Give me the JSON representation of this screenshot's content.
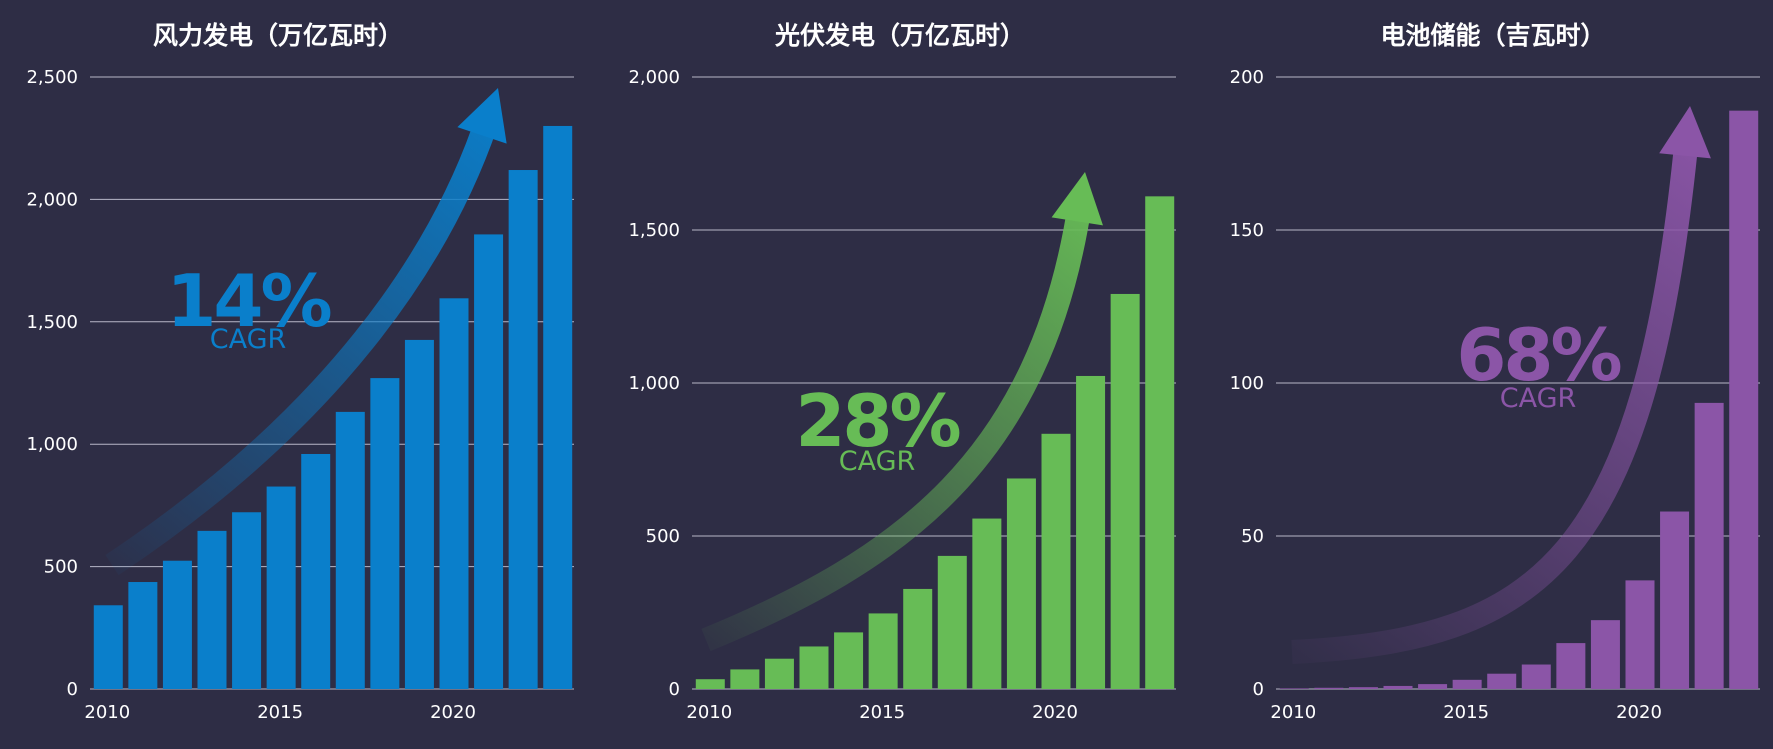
{
  "chart_data": [
    {
      "type": "bar",
      "title": "风力发电（万亿瓦时）",
      "color": "#0a7fcb",
      "x": [
        2010,
        2011,
        2012,
        2013,
        2014,
        2015,
        2016,
        2017,
        2018,
        2019,
        2020,
        2021,
        2022,
        2023
      ],
      "values": [
        342,
        437,
        524,
        646,
        722,
        827,
        960,
        1132,
        1270,
        1426,
        1596,
        1857,
        2120,
        2300
      ],
      "yticks": [
        0,
        500,
        1000,
        1500,
        2000,
        2500
      ],
      "ytick_labels": [
        "0",
        "500",
        "1,000",
        "1,500",
        "2,000",
        "2,500"
      ],
      "xticks": [
        2010,
        2015,
        2020
      ],
      "ylim": [
        0,
        2500
      ],
      "grid": true,
      "annotation": {
        "value": "14%",
        "label": "CAGR"
      }
    },
    {
      "type": "bar",
      "title": "光伏发电（万亿瓦时）",
      "color": "#67bc56",
      "x": [
        2010,
        2011,
        2012,
        2013,
        2014,
        2015,
        2016,
        2017,
        2018,
        2019,
        2020,
        2021,
        2022,
        2023
      ],
      "values": [
        32,
        64,
        99,
        139,
        185,
        247,
        327,
        435,
        557,
        688,
        834,
        1023,
        1291,
        1610
      ],
      "yticks": [
        0,
        500,
        1000,
        1500,
        2000
      ],
      "ytick_labels": [
        "0",
        "500",
        "1,000",
        "1,500",
        "2,000"
      ],
      "xticks": [
        2010,
        2015,
        2020
      ],
      "ylim": [
        0,
        2000
      ],
      "grid": true,
      "annotation": {
        "value": "28%",
        "label": "CAGR"
      }
    },
    {
      "type": "bar",
      "title": "电池储能（吉瓦时）",
      "color": "#8b55a7",
      "x": [
        2010,
        2011,
        2012,
        2013,
        2014,
        2015,
        2016,
        2017,
        2018,
        2019,
        2020,
        2021,
        2022,
        2023
      ],
      "values": [
        0.2,
        0.4,
        0.6,
        1,
        1.6,
        3,
        5,
        8,
        15,
        22.5,
        35.5,
        58,
        93.5,
        189
      ],
      "yticks": [
        0,
        50,
        100,
        150,
        200
      ],
      "ytick_labels": [
        "0",
        "50",
        "100",
        "150",
        "200"
      ],
      "xticks": [
        2010,
        2015,
        2020
      ],
      "ylim": [
        0,
        200
      ],
      "grid": true,
      "annotation": {
        "value": "68%",
        "label": "CAGR"
      }
    }
  ]
}
